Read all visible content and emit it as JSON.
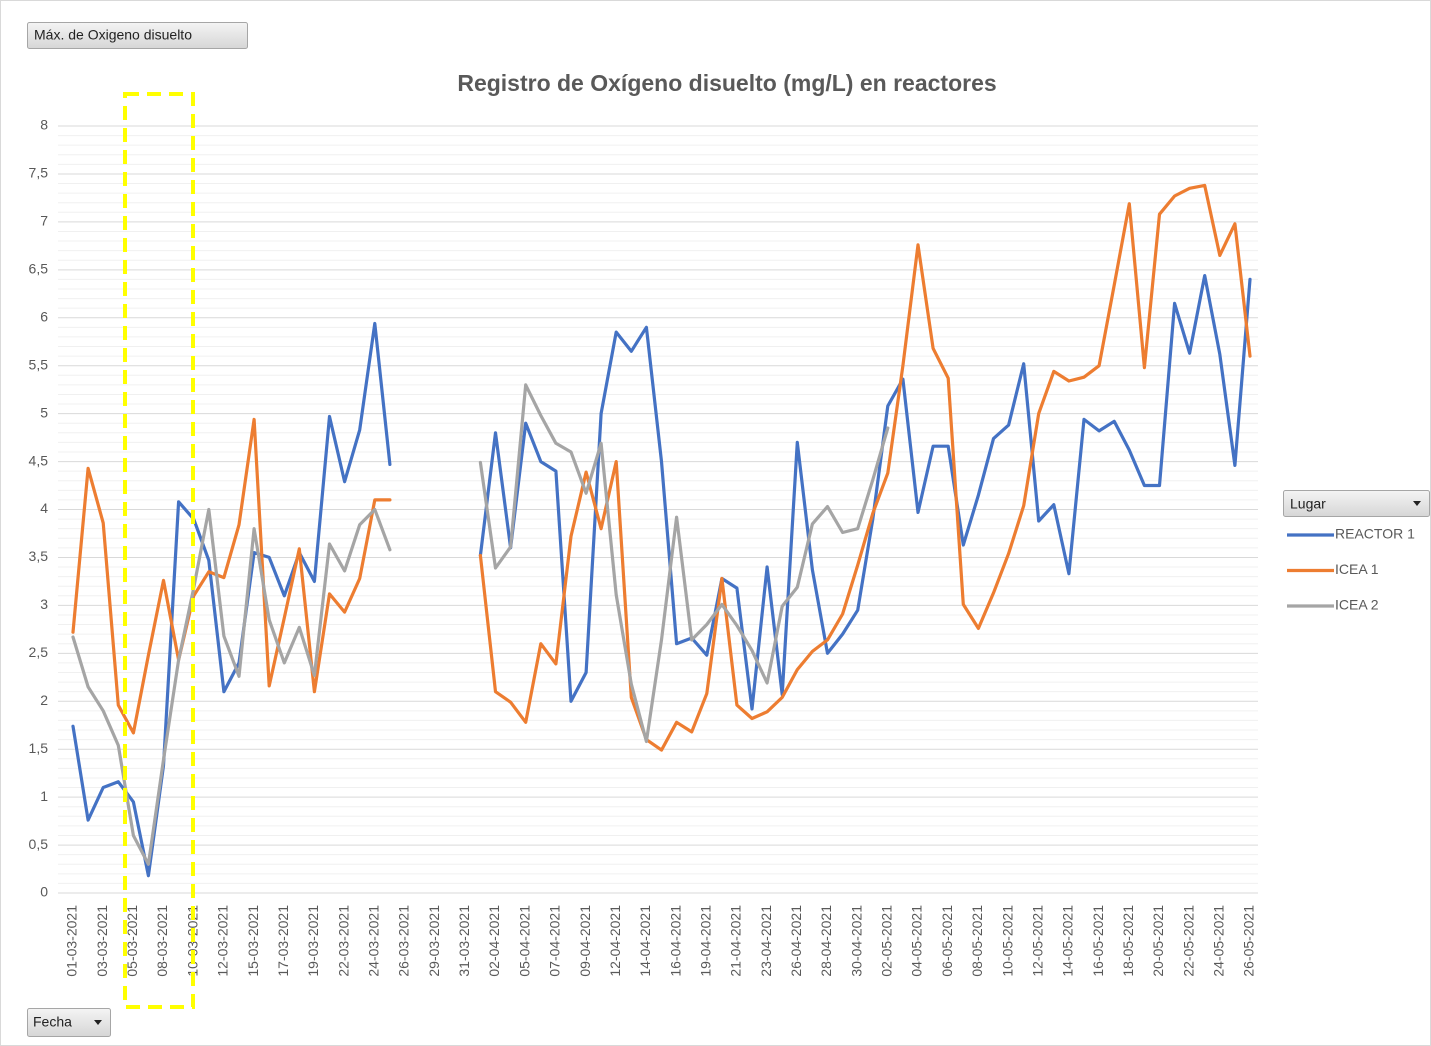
{
  "ui": {
    "value_field": "Máx. de Oxigeno disuelto",
    "axis_field": "Fecha"
  },
  "chart_data": {
    "type": "line",
    "title": "Registro de Oxígeno disuelto (mg/L) en reactores",
    "legend_title": "Lugar",
    "legend": "right",
    "grid": true,
    "ylim": [
      0,
      8
    ],
    "yticks": [
      0,
      {
        "value": 0.5,
        "label": "0,5"
      },
      1,
      {
        "value": 1.5,
        "label": "1,5"
      },
      2,
      {
        "value": 2.5,
        "label": "2,5"
      },
      3,
      {
        "value": 3.5,
        "label": "3,5"
      },
      4,
      {
        "value": 4.5,
        "label": "4,5"
      },
      5,
      {
        "value": 5.5,
        "label": "5,5"
      },
      6,
      {
        "value": 6.5,
        "label": "6,5"
      },
      7,
      {
        "value": 7.5,
        "label": "7,5"
      },
      8
    ],
    "categories": [
      "01-03-2021",
      null,
      "03-03-2021",
      null,
      "05-03-2021",
      null,
      "08-03-2021",
      null,
      "10-03-2021",
      null,
      "12-03-2021",
      null,
      "15-03-2021",
      null,
      "17-03-2021",
      null,
      "19-03-2021",
      null,
      "22-03-2021",
      null,
      "24-03-2021",
      null,
      "26-03-2021",
      null,
      "29-03-2021",
      null,
      "31-03-2021",
      null,
      "02-04-2021",
      null,
      "05-04-2021",
      null,
      "07-04-2021",
      null,
      "09-04-2021",
      null,
      "12-04-2021",
      null,
      "14-04-2021",
      null,
      "16-04-2021",
      null,
      "19-04-2021",
      null,
      "21-04-2021",
      null,
      "23-04-2021",
      null,
      "26-04-2021",
      null,
      "28-04-2021",
      null,
      "30-04-2021",
      null,
      "02-05-2021",
      null,
      "04-05-2021",
      null,
      "06-05-2021",
      null,
      "08-05-2021",
      null,
      "10-05-2021",
      null,
      "12-05-2021",
      null,
      "14-05-2021",
      null,
      "16-05-2021",
      null,
      "18-05-2021",
      null,
      "20-05-2021",
      null,
      "22-05-2021",
      null,
      "24-05-2021",
      null,
      "26-05-2021"
    ],
    "series": [
      {
        "name": "REACTOR 1",
        "color": "#4472c4",
        "values": [
          1.74,
          0.76,
          1.1,
          1.16,
          0.95,
          0.18,
          1.33,
          4.08,
          3.9,
          3.47,
          2.1,
          2.4,
          3.55,
          3.5,
          3.1,
          3.55,
          3.25,
          4.97,
          4.29,
          4.83,
          5.94,
          4.47,
          null,
          null,
          null,
          null,
          null,
          3.52,
          4.8,
          3.6,
          4.9,
          4.5,
          4.4,
          2.0,
          2.3,
          5.0,
          5.85,
          5.65,
          5.9,
          4.5,
          2.6,
          2.66,
          2.48,
          3.28,
          3.18,
          1.92,
          3.4,
          2.07,
          4.7,
          3.37,
          2.5,
          2.7,
          2.95,
          3.9,
          5.08,
          5.36,
          3.97,
          4.66,
          4.66,
          3.63,
          4.15,
          4.74,
          4.88,
          5.52,
          3.88,
          4.05,
          3.33,
          4.94,
          4.82,
          4.92,
          4.62,
          4.25,
          4.25,
          6.15,
          5.63,
          6.44,
          5.62,
          4.46,
          6.4
        ]
      },
      {
        "name": "ICEA 1",
        "color": "#ed7d31",
        "values": [
          2.72,
          4.43,
          3.86,
          1.96,
          1.67,
          2.48,
          3.26,
          2.43,
          3.1,
          3.35,
          3.29,
          3.84,
          4.94,
          2.16,
          2.87,
          3.59,
          2.1,
          3.12,
          2.93,
          3.28,
          4.1,
          4.1,
          null,
          null,
          null,
          null,
          null,
          3.52,
          2.1,
          1.99,
          1.78,
          2.6,
          2.39,
          3.72,
          4.39,
          3.8,
          4.5,
          2.04,
          1.6,
          1.49,
          1.78,
          1.68,
          2.08,
          3.28,
          1.96,
          1.82,
          1.89,
          2.04,
          2.33,
          2.52,
          2.64,
          2.91,
          3.42,
          3.96,
          4.38,
          5.5,
          6.76,
          5.68,
          5.37,
          3.01,
          2.76,
          3.13,
          3.54,
          4.04,
          5.0,
          5.44,
          5.34,
          5.38,
          5.5,
          6.34,
          7.19,
          5.48,
          7.08,
          7.27,
          7.35,
          7.38,
          6.65,
          6.98,
          5.6
        ]
      },
      {
        "name": "ICEA 2",
        "color": "#a5a5a5",
        "values": [
          2.67,
          2.15,
          1.9,
          1.54,
          0.6,
          0.3,
          1.39,
          2.43,
          3.18,
          4.0,
          2.68,
          2.26,
          3.8,
          2.85,
          2.4,
          2.77,
          2.27,
          3.64,
          3.36,
          3.84,
          4.0,
          3.58,
          null,
          null,
          null,
          null,
          null,
          4.49,
          3.39,
          3.61,
          5.3,
          4.98,
          4.69,
          4.6,
          4.17,
          4.69,
          3.11,
          2.18,
          1.58,
          2.64,
          3.92,
          2.64,
          2.8,
          3.01,
          2.79,
          2.53,
          2.19,
          2.99,
          3.19,
          3.85,
          4.03,
          3.76,
          3.8,
          4.31,
          4.85,
          null,
          null,
          null,
          null,
          null,
          null,
          null,
          null,
          null,
          null,
          null,
          null,
          null,
          null,
          null,
          null,
          null,
          null,
          null,
          null,
          null,
          null,
          null,
          null
        ]
      }
    ]
  }
}
